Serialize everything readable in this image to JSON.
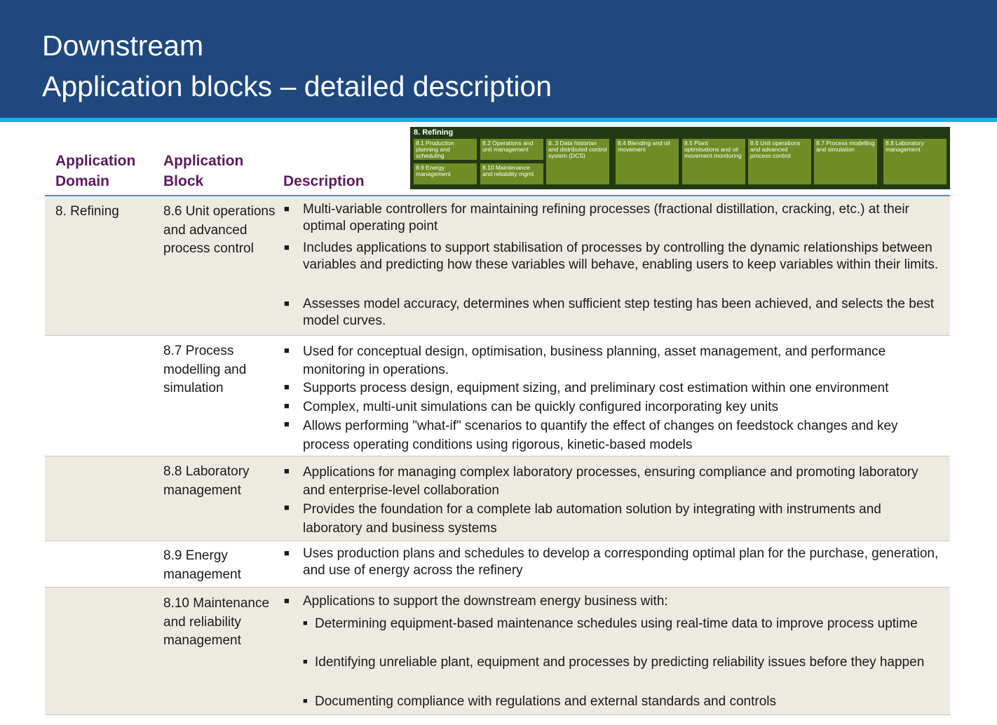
{
  "header": {
    "title_line1": "Downstream",
    "title_line2": "Application blocks – detailed description",
    "bg_color": "#1f497d",
    "accent_color": "#0fb4e6"
  },
  "table_header": {
    "col1": "Application Domain",
    "col1_l1": "Application",
    "col1_l2": "Domain",
    "col2_l1": "Application",
    "col2_l2": "Block",
    "col3": "Description",
    "color": "#5c1a5e"
  },
  "mini_map": {
    "title": "8. Refining",
    "box_color": "#6e8d26",
    "blocks": [
      "8.1 Production planning and scheduling",
      "8.2  Operations and unit management",
      "8.9 Energy management",
      "8.10 Maintenance and reliability mgmt",
      "8..3  Data historian and distributed control system (DCS)",
      "8.4 Blending and oil  movement",
      "8.5 Plant optimisations and oil movement monitoring",
      "8.6 Unit operations and advanced process control",
      "8.7 Process modelling and simulation",
      "8.8 Laboratory management"
    ]
  },
  "rows": [
    {
      "domain": "8. Refining",
      "block": "8.6 Unit operations and advanced process control",
      "bullets": [
        "Multi-variable controllers for maintaining refining processes (fractional distillation, cracking, etc.) at their optimal operating point",
        "Includes applications to support stabilisation of processes by controlling the dynamic relationships between variables and predicting how these variables will behave, enabling users to keep variables within their limits.",
        "Assesses model accuracy, determines when sufficient step testing has been achieved, and selects the best model curves."
      ]
    },
    {
      "domain": "",
      "block": "8.7 Process modelling and simulation",
      "bullets": [
        "Used for conceptual design, optimisation, business planning, asset management, and performance monitoring in operations.",
        "Supports process design, equipment sizing, and preliminary cost estimation within one environment",
        "Complex, multi-unit simulations can be quickly configured incorporating key units",
        "Allows performing \"what-if\" scenarios to quantify the effect of changes on feedstock changes and key process operating conditions using rigorous, kinetic-based models"
      ]
    },
    {
      "domain": "",
      "block": "8.8 Laboratory management",
      "bullets": [
        "Applications for managing complex laboratory processes, ensuring compliance and promoting laboratory and enterprise-level collaboration",
        "Provides the foundation for a complete lab automation solution by integrating with instruments and laboratory and business systems"
      ]
    },
    {
      "domain": "",
      "block": "8.9 Energy management",
      "bullets": [
        "Uses production plans and schedules to develop a corresponding optimal plan for the purchase, generation, and use of energy across the refinery"
      ]
    },
    {
      "domain": "",
      "block": "8.10 Maintenance and reliability management",
      "bullets": [
        "Applications to support the downstream energy business with:"
      ],
      "sub_bullets": [
        "Determining equipment-based maintenance schedules using real-time data to improve process uptime",
        "Identifying unreliable plant, equipment and processes by predicting reliability issues before they happen",
        "Documenting compliance with regulations and external standards and controls"
      ]
    }
  ]
}
